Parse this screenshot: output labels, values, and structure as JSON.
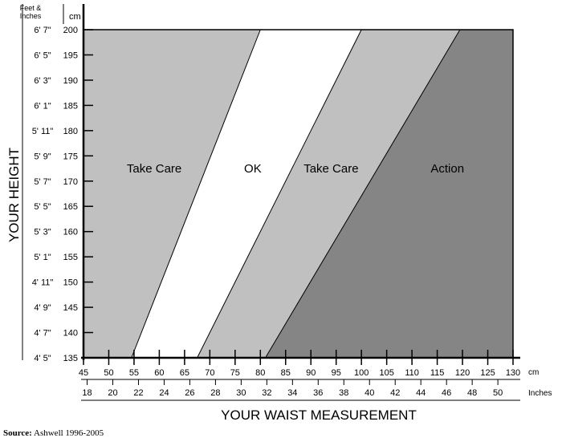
{
  "chart_data": {
    "type": "area",
    "title": "",
    "xlabel": "YOUR WAIST MEASUREMENT",
    "ylabel": "YOUR HEIGHT",
    "x_unit_primary": "cm",
    "x_unit_secondary": "Inches",
    "y_unit_primary": "cm",
    "y_unit_secondary": "Feet & Inches",
    "xlim": [
      45,
      130
    ],
    "ylim": [
      135,
      200
    ],
    "x_ticks_cm": [
      "45",
      "50",
      "55",
      "60",
      "65",
      "70",
      "75",
      "80",
      "85",
      "90",
      "95",
      "100",
      "105",
      "110",
      "115",
      "120",
      "125",
      "130"
    ],
    "x_ticks_inches": [
      "18",
      "20",
      "22",
      "24",
      "26",
      "28",
      "30",
      "32",
      "34",
      "36",
      "38",
      "40",
      "42",
      "44",
      "46",
      "48",
      "50"
    ],
    "y_ticks_cm": [
      "135",
      "140",
      "145",
      "150",
      "155",
      "160",
      "165",
      "170",
      "175",
      "180",
      "185",
      "190",
      "195",
      "200"
    ],
    "y_ticks_feet": [
      "4' 5\"",
      "4' 7\"",
      "4' 9\"",
      "4' 11\"",
      "5' 1\"",
      "5' 3\"",
      "5' 5\"",
      "5' 7\"",
      "5' 9\"",
      "5' 11\"",
      "6' 1\"",
      "6' 3\"",
      "6' 5\"",
      "6' 7\""
    ],
    "boundaries": [
      {
        "name": "take-care-ok",
        "points": [
          [
            54.5,
            135
          ],
          [
            80,
            200
          ]
        ]
      },
      {
        "name": "ok-take-care",
        "points": [
          [
            67.5,
            135
          ],
          [
            100,
            200
          ]
        ]
      },
      {
        "name": "take-care-action",
        "points": [
          [
            81,
            135
          ],
          [
            119.5,
            200
          ]
        ]
      }
    ],
    "regions": [
      {
        "label": "Take Care",
        "color": "#c0c0c0"
      },
      {
        "label": "OK",
        "color": "#ffffff"
      },
      {
        "label": "Take Care",
        "color": "#c0c0c0"
      },
      {
        "label": "Action",
        "color": "#858585"
      }
    ]
  },
  "source": {
    "label": "Source:",
    "text": "Ashwell 1996-2005"
  }
}
